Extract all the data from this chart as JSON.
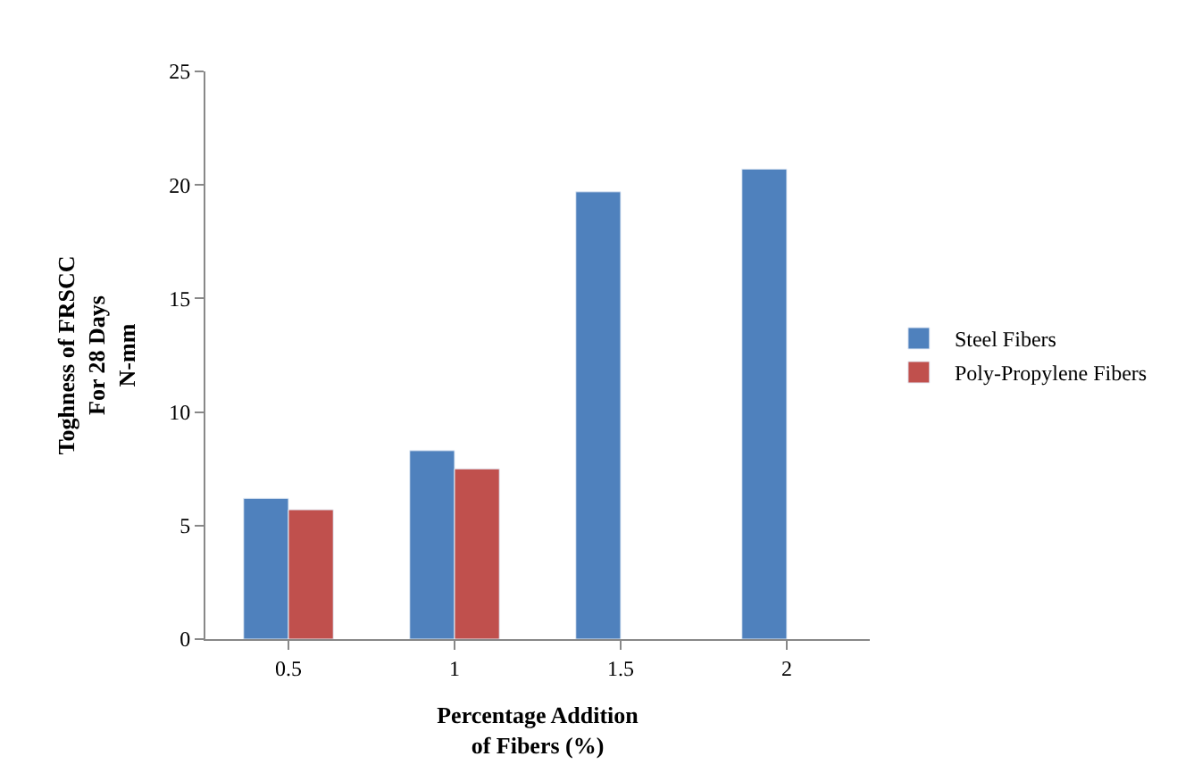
{
  "chart_data": {
    "type": "bar",
    "xlabel": "Percentage Addition\nof Fibers (%)",
    "ylabel": "Toghness of FRSCC\nFor 28 Days\nN-mm",
    "categories": [
      "0.5",
      "1",
      "1.5",
      "2"
    ],
    "series": [
      {
        "name": "Steel Fibers",
        "color": "#4f81bd",
        "values": [
          6.2,
          8.3,
          19.7,
          20.7
        ]
      },
      {
        "name": "Poly-Propylene Fibers",
        "color": "#c0504d",
        "values": [
          5.7,
          7.5,
          null,
          null
        ]
      }
    ],
    "ylim": [
      0,
      25
    ],
    "yticks": [
      0,
      5,
      10,
      15,
      20,
      25
    ],
    "grid": false,
    "legend": "right"
  }
}
